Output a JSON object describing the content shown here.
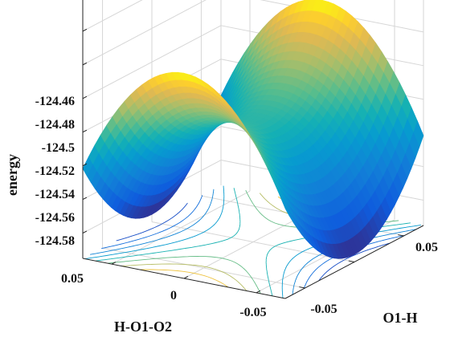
{
  "chart_data": {
    "type": "surface3d",
    "title": "",
    "xlabel": "O1-H",
    "ylabel": "H-O1-O2",
    "zlabel": "energy",
    "x_ticks": [
      "-0.05",
      "0.05"
    ],
    "y_ticks": [
      "0.05",
      "0",
      "-0.05"
    ],
    "z_ticks": [
      "-124.46",
      "-124.48",
      "-124.5",
      "-124.52",
      "-124.54",
      "-124.56",
      "-124.58"
    ],
    "xlim": [
      -0.07,
      0.07
    ],
    "ylim": [
      -0.07,
      0.07
    ],
    "zlim": [
      -124.595,
      -124.44
    ],
    "grid": true,
    "colormap": "parula",
    "contours_on_floor": true,
    "surface_model": {
      "description": "saddle",
      "z0": -124.522,
      "x_coef": 10,
      "y_coef": -14
    }
  }
}
